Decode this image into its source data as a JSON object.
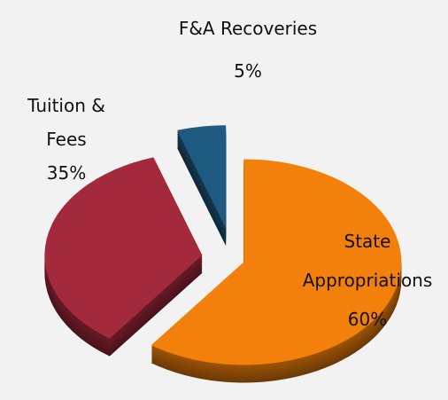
{
  "chart_data": {
    "type": "pie",
    "categories": [
      "State Appropriations",
      "Tuition & Fees",
      "F&A Recoveries"
    ],
    "values": [
      60,
      35,
      5
    ],
    "value_labels": [
      "60%",
      "35%",
      "5%"
    ],
    "colors": [
      "#f2800a",
      "#a32a3c",
      "#1f5a80"
    ]
  }
}
